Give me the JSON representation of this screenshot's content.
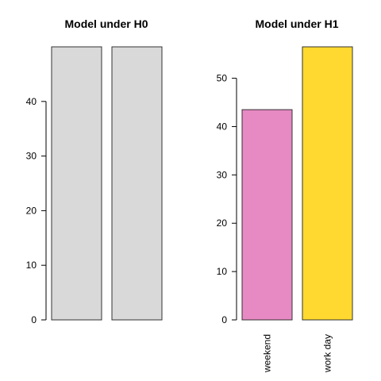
{
  "chart_data": [
    {
      "type": "bar",
      "title": "Model under H0",
      "categories": [
        "",
        ""
      ],
      "values": [
        50,
        50
      ],
      "colors": [
        "#d9d9d9",
        "#d9d9d9"
      ],
      "xlabel": "",
      "ylabel": "",
      "ylim": [
        0,
        50
      ],
      "yticks": [
        0,
        10,
        20,
        30,
        40
      ],
      "grid": false,
      "legend": "none"
    },
    {
      "type": "bar",
      "title": "Model under H1",
      "categories": [
        "weekend",
        "work day"
      ],
      "values": [
        43.5,
        56.5
      ],
      "colors": [
        "#e78ac3",
        "#ffd92f"
      ],
      "xlabel": "",
      "ylabel": "",
      "ylim": [
        0,
        56.5
      ],
      "yticks": [
        0,
        10,
        20,
        30,
        40,
        50
      ],
      "grid": false,
      "legend": "none"
    }
  ]
}
